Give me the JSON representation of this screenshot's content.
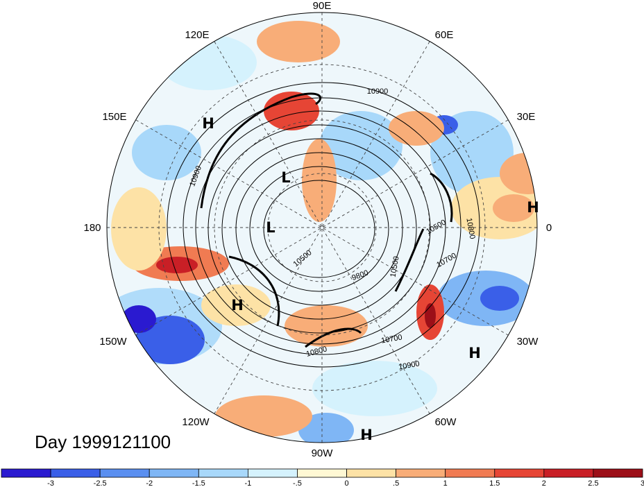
{
  "title": "Day 1999121100",
  "longitude_labels": [
    {
      "id": "lon-90e",
      "text": "90E"
    },
    {
      "id": "lon-60e",
      "text": "60E"
    },
    {
      "id": "lon-120e",
      "text": "120E"
    },
    {
      "id": "lon-150e",
      "text": "150E"
    },
    {
      "id": "lon-30e",
      "text": "30E"
    },
    {
      "id": "lon-180",
      "text": "180"
    },
    {
      "id": "lon-0",
      "text": "0"
    },
    {
      "id": "lon-150w",
      "text": "150W"
    },
    {
      "id": "lon-30w",
      "text": "30W"
    },
    {
      "id": "lon-120w",
      "text": "120W"
    },
    {
      "id": "lon-60w",
      "text": "60W"
    },
    {
      "id": "lon-90w",
      "text": "90W"
    }
  ],
  "contour_labels": [
    "10900",
    "10900",
    "10800",
    "10500",
    "10500",
    "10700",
    "9800",
    "10700",
    "10800",
    "10900",
    "10500"
  ],
  "pressure_systems": [
    "H",
    "L",
    "L",
    "H",
    "H",
    "H",
    "H"
  ],
  "colorbar": {
    "ticks": [
      "-3",
      "-2.5",
      "-2",
      "-1.5",
      "-1",
      "-.5",
      "0",
      ".5",
      "1",
      "1.5",
      "2",
      "2.5",
      "3"
    ],
    "colors": [
      "#2a1ad0",
      "#3a5fe8",
      "#5a8ff0",
      "#7fb6f5",
      "#a8d8fa",
      "#d5f2fd",
      "#fff8d4",
      "#fde2a6",
      "#f8ad78",
      "#f07b52",
      "#e64535",
      "#c91f26",
      "#9c0f18"
    ]
  }
}
